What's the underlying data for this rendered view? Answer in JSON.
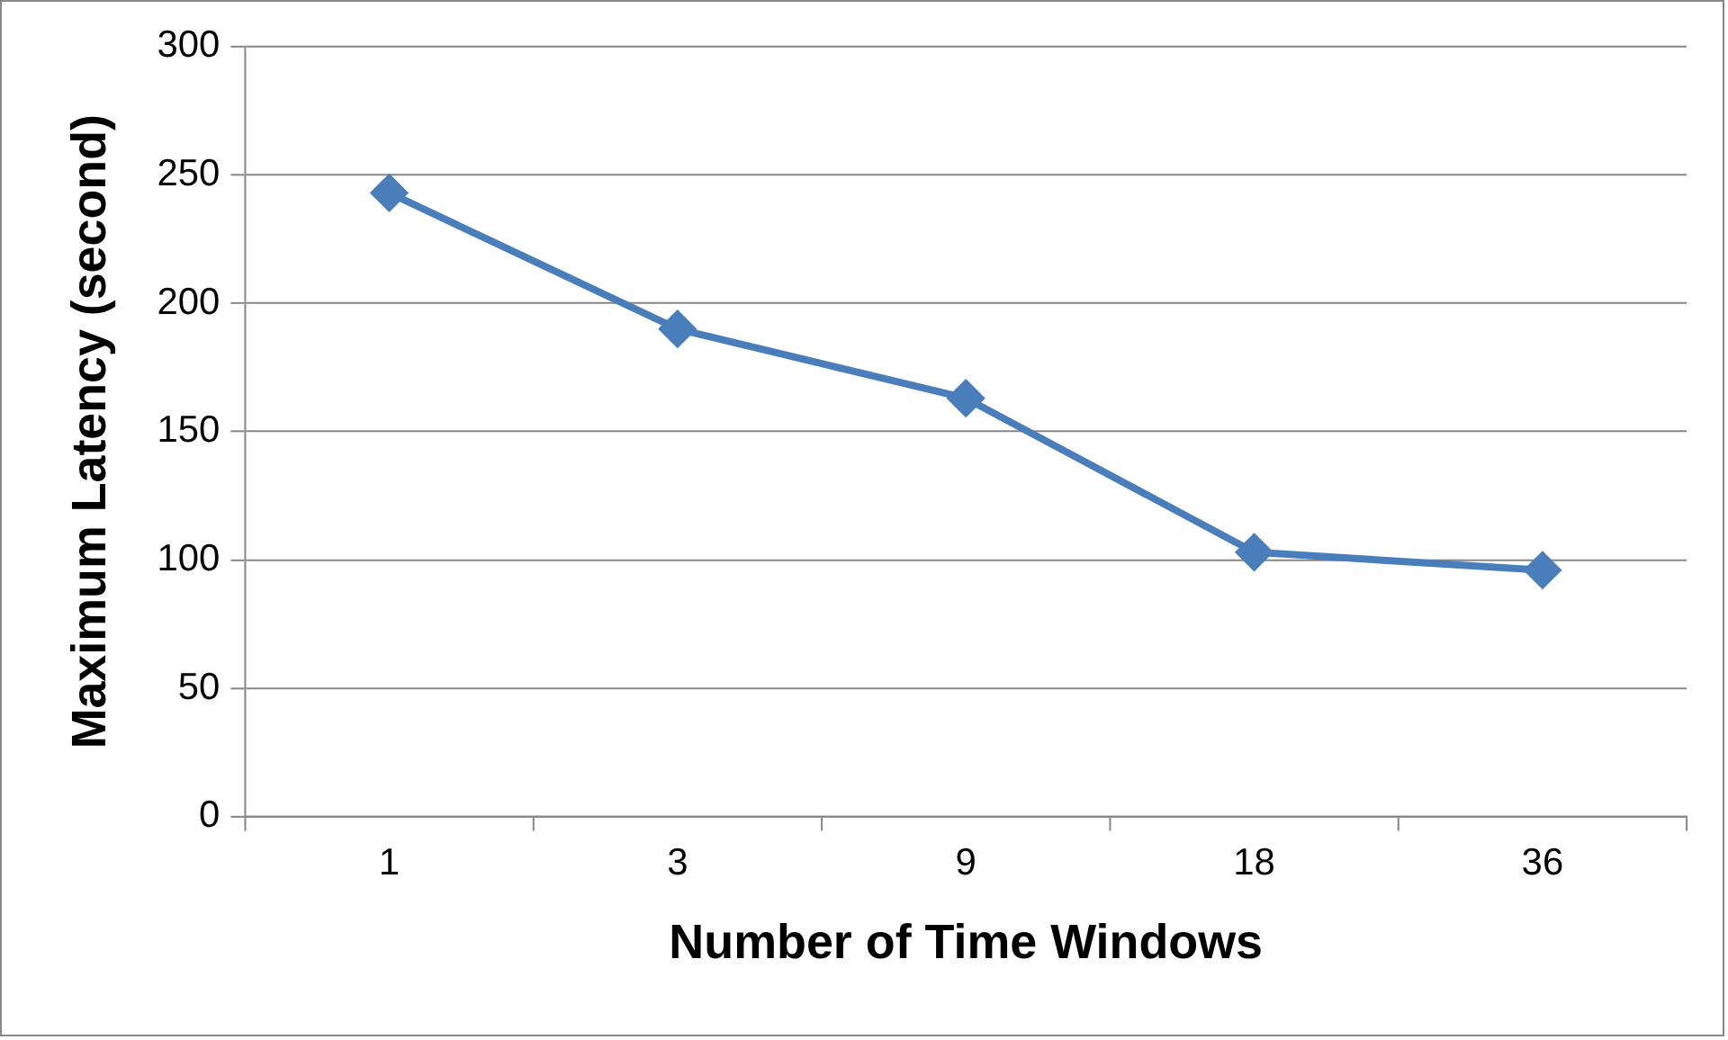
{
  "chart_data": {
    "type": "line",
    "xlabel": "Number of Time Windows",
    "ylabel": "Maximum Latency (second)",
    "categories": [
      "1",
      "3",
      "9",
      "18",
      "36"
    ],
    "series": [
      {
        "color": "#4a7ebb",
        "values": [
          243,
          190,
          163,
          103,
          96
        ]
      }
    ],
    "ylim": [
      0,
      300
    ],
    "yticks": [
      0,
      50,
      100,
      150,
      200,
      250,
      300
    ],
    "grid": "y",
    "legend": false,
    "marker": "diamond",
    "line_style": "solid"
  }
}
